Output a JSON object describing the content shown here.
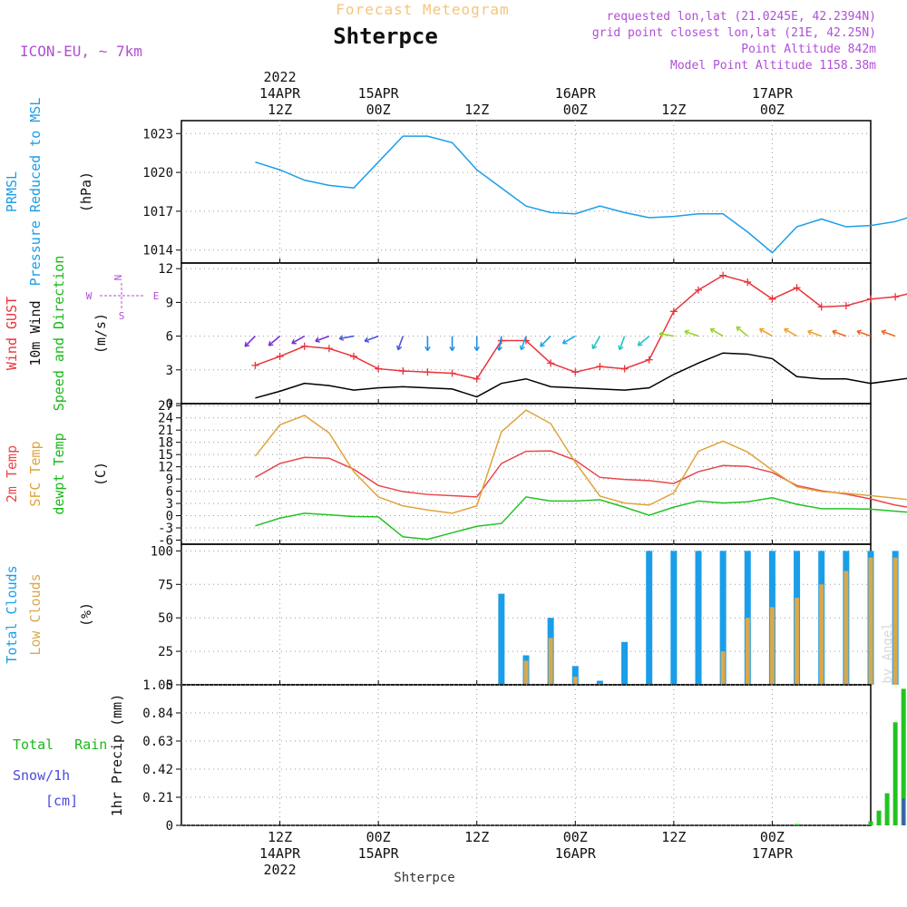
{
  "header": {
    "subtitle": "Forecast Meteogram",
    "location": "Shterpce",
    "model": "ICON-EU, ~ 7km",
    "requested": "requested lon,lat (21.0245E, 42.2394N)",
    "gridpoint": "grid point closest lon,lat (21E, 42.25N)",
    "point_alt": "Point Altitude 842m",
    "model_alt": "Model Point Altitude 1158.38m"
  },
  "footer": {
    "location": "Shterpce",
    "watermark": "by Angel"
  },
  "time_axis": {
    "top": [
      {
        "x": 12,
        "lines": [
          "2022",
          "14APR",
          "12Z"
        ]
      },
      {
        "x": 24,
        "lines": [
          "15APR",
          "00Z"
        ]
      },
      {
        "x": 36,
        "lines": [
          "12Z"
        ]
      },
      {
        "x": 48,
        "lines": [
          "16APR",
          "00Z"
        ]
      },
      {
        "x": 60,
        "lines": [
          "12Z"
        ]
      },
      {
        "x": 72,
        "lines": [
          "17APR",
          "00Z"
        ]
      }
    ],
    "bottom": [
      {
        "x": 12,
        "lines": [
          "12Z",
          "14APR",
          "2022"
        ]
      },
      {
        "x": 24,
        "lines": [
          "00Z",
          "15APR"
        ]
      },
      {
        "x": 36,
        "lines": [
          "12Z"
        ]
      },
      {
        "x": 48,
        "lines": [
          "00Z",
          "16APR"
        ]
      },
      {
        "x": 60,
        "lines": [
          "12Z"
        ]
      },
      {
        "x": 72,
        "lines": [
          "00Z",
          "17APR"
        ]
      }
    ]
  },
  "colors": {
    "pressure": "#1a9ee8",
    "gust": "#e8343b",
    "wind": "#000000",
    "temp2m": "#e8474c",
    "sfc": "#e0a33a",
    "dewpt": "#22c322",
    "total_clouds": "#1a9ee8",
    "low_clouds": "#d9a84e",
    "rain": "#22c322",
    "snow": "#4a4ae0",
    "header_purple": "#b04fd6",
    "header_orange": "#f5c57e",
    "green_label": "#1ab81a"
  },
  "chart_data": [
    {
      "type": "line",
      "labels": [
        "PRMSL",
        "Pressure Reduced to MSL",
        "(hPa)"
      ],
      "ylim": [
        1013,
        1024
      ],
      "yticks": [
        1014,
        1017,
        1020,
        1023
      ],
      "x": [
        0,
        3,
        6,
        9,
        12,
        15,
        18,
        21,
        24,
        27,
        30,
        33,
        36,
        39,
        42,
        45,
        48,
        51,
        54,
        57,
        60,
        63,
        66,
        69,
        72,
        75,
        78,
        81,
        84,
        87
      ],
      "series": [
        {
          "key": "pressure",
          "values": [
            1020.8,
            1020.2,
            1019.4,
            1019.0,
            1018.8,
            1020.8,
            1022.8,
            1022.8,
            1022.3,
            1020.2,
            1018.8,
            1017.4,
            1016.9,
            1016.8,
            1017.4,
            1016.9,
            1016.5,
            1016.6,
            1016.8,
            1016.8,
            1015.4,
            1013.8,
            1015.8,
            1016.4,
            1015.8,
            1015.9,
            1016.2,
            1016.8,
            1016.6,
            1015.0
          ]
        }
      ]
    },
    {
      "type": "line",
      "labels": [
        "Wind GUST",
        "10m Wind",
        "Speed and Direction",
        "(m/s)"
      ],
      "compass": {
        "n": "N",
        "s": "S",
        "w": "W",
        "e": "E"
      },
      "ylim": [
        0,
        12.5
      ],
      "yticks": [
        0,
        3,
        6,
        9,
        12
      ],
      "x": [
        0,
        3,
        6,
        9,
        12,
        15,
        18,
        21,
        24,
        27,
        30,
        33,
        36,
        39,
        42,
        45,
        48,
        51,
        54,
        57,
        60,
        63,
        66,
        69,
        72,
        75,
        78,
        81,
        84,
        87
      ],
      "series": [
        {
          "key": "gust",
          "values": [
            3.4,
            4.2,
            5.1,
            4.9,
            4.2,
            3.1,
            2.9,
            2.8,
            2.7,
            2.2,
            5.6,
            5.6,
            3.6,
            2.8,
            3.3,
            3.1,
            3.9,
            8.2,
            10.1,
            11.4,
            10.8,
            9.3,
            10.3,
            8.6,
            8.7,
            9.3,
            9.5,
            10.0,
            10.0,
            10.6
          ]
        },
        {
          "key": "wind",
          "values": [
            0.5,
            1.1,
            1.8,
            1.6,
            1.2,
            1.4,
            1.5,
            1.4,
            1.3,
            0.6,
            1.8,
            2.2,
            1.5,
            1.4,
            1.3,
            1.2,
            1.4,
            2.6,
            3.6,
            4.5,
            4.4,
            4.0,
            2.4,
            2.2,
            2.2,
            1.8,
            2.1,
            2.4,
            2.6,
            4.8
          ]
        }
      ],
      "arrows": {
        "level": 6,
        "dirs": [
          225,
          230,
          240,
          250,
          260,
          250,
          200,
          180,
          180,
          180,
          190,
          200,
          225,
          240,
          210,
          200,
          230,
          280,
          290,
          300,
          310,
          300,
          300,
          290,
          290,
          290,
          290,
          300,
          310,
          320
        ]
      }
    },
    {
      "type": "line",
      "labels": [
        "2m Temp",
        "SFC Temp",
        "dewpt Temp",
        "(C)"
      ],
      "ylim": [
        -7,
        27.5
      ],
      "yticks": [
        -6,
        -3,
        0,
        3,
        6,
        9,
        12,
        15,
        18,
        21,
        24,
        27
      ],
      "x": [
        0,
        3,
        6,
        9,
        12,
        15,
        18,
        21,
        24,
        27,
        30,
        33,
        36,
        39,
        42,
        45,
        48,
        51,
        54,
        57,
        60,
        63,
        66,
        69,
        72,
        75,
        78,
        81,
        84,
        87
      ],
      "series": [
        {
          "key": "temp2m",
          "values": [
            9.4,
            12.8,
            14.3,
            14.1,
            11.4,
            7.4,
            5.9,
            5.2,
            4.9,
            4.6,
            12.8,
            15.8,
            15.9,
            13.6,
            9.4,
            8.9,
            8.6,
            7.9,
            10.8,
            12.3,
            12.1,
            10.6,
            7.4,
            6.1,
            5.3,
            4.1,
            2.6,
            1.6,
            1.6,
            2.9
          ]
        },
        {
          "key": "sfc",
          "values": [
            14.6,
            22.3,
            24.6,
            20.3,
            10.8,
            4.6,
            2.4,
            1.4,
            0.6,
            2.4,
            20.6,
            25.9,
            22.6,
            13.1,
            4.8,
            3.1,
            2.6,
            5.6,
            15.8,
            18.3,
            15.6,
            11.2,
            7.1,
            5.9,
            5.5,
            4.9,
            4.3,
            3.6,
            3.2,
            6.8
          ]
        },
        {
          "key": "dewpt",
          "values": [
            -2.5,
            -0.6,
            0.6,
            0.2,
            -0.2,
            -0.3,
            -5.2,
            -5.8,
            -4.2,
            -2.6,
            -1.9,
            4.6,
            3.6,
            3.6,
            3.9,
            2.1,
            0.1,
            2.1,
            3.6,
            3.1,
            3.4,
            4.4,
            2.8,
            1.7,
            1.7,
            1.6,
            1.1,
            0.6,
            -0.9,
            -5.6
          ]
        }
      ]
    },
    {
      "type": "bar",
      "labels": [
        "Total Clouds",
        "Low Clouds",
        "(%)"
      ],
      "ylim": [
        0,
        105
      ],
      "yticks": [
        0,
        25,
        50,
        75,
        100
      ],
      "x": [
        0,
        3,
        6,
        9,
        12,
        15,
        18,
        21,
        24,
        27,
        30,
        33,
        36,
        39,
        42,
        45,
        48,
        51,
        54,
        57,
        60,
        63,
        66,
        69,
        72,
        75,
        78,
        81,
        84,
        87
      ],
      "series": [
        {
          "key": "total_clouds",
          "values": [
            0,
            0,
            0,
            0,
            0,
            0,
            0,
            0,
            0,
            0,
            68,
            22,
            50,
            14,
            3,
            32,
            100,
            100,
            100,
            100,
            100,
            100,
            100,
            100,
            100,
            100,
            100,
            100,
            100,
            100
          ]
        },
        {
          "key": "low_clouds",
          "values": [
            0,
            0,
            0,
            0,
            0,
            0,
            0,
            0,
            0,
            0,
            0,
            18,
            35,
            6,
            1,
            0,
            0,
            0,
            0,
            25,
            50,
            58,
            65,
            75,
            85,
            95,
            95,
            92,
            88,
            70
          ]
        }
      ]
    },
    {
      "type": "bar",
      "labels": [
        "Total Rain",
        "Snow/1h",
        "[cm]",
        "1hr Precip (mm)"
      ],
      "ylim": [
        0,
        1.05
      ],
      "yticks": [
        0,
        0.21,
        0.42,
        0.63,
        0.84,
        1.05
      ],
      "x": [
        0,
        3,
        6,
        9,
        12,
        15,
        18,
        21,
        24,
        27,
        30,
        33,
        36,
        39,
        42,
        45,
        48,
        51,
        54,
        57,
        60,
        63,
        66,
        69,
        72,
        75,
        76,
        77,
        78,
        79,
        80,
        81,
        82,
        83,
        84,
        85,
        86,
        87
      ],
      "series": [
        {
          "key": "rain",
          "values": [
            0,
            0,
            0,
            0,
            0,
            0,
            0,
            0,
            0,
            0,
            0,
            0,
            0,
            0,
            0,
            0,
            0,
            0,
            0,
            0,
            0,
            0,
            0.01,
            0,
            0,
            0.03,
            0.11,
            0.24,
            0.77,
            1.02,
            0.96,
            0.93,
            0.37,
            0.09,
            0.07,
            0.05,
            0,
            0
          ]
        },
        {
          "key": "snow",
          "values": [
            0,
            0,
            0,
            0,
            0,
            0,
            0,
            0,
            0,
            0,
            0,
            0,
            0,
            0,
            0,
            0,
            0,
            0,
            0,
            0,
            0,
            0,
            0,
            0,
            0,
            0,
            0,
            0,
            0,
            0.2,
            0.55,
            0.33,
            0.04,
            0.04,
            0,
            0,
            0,
            0
          ]
        }
      ]
    }
  ]
}
